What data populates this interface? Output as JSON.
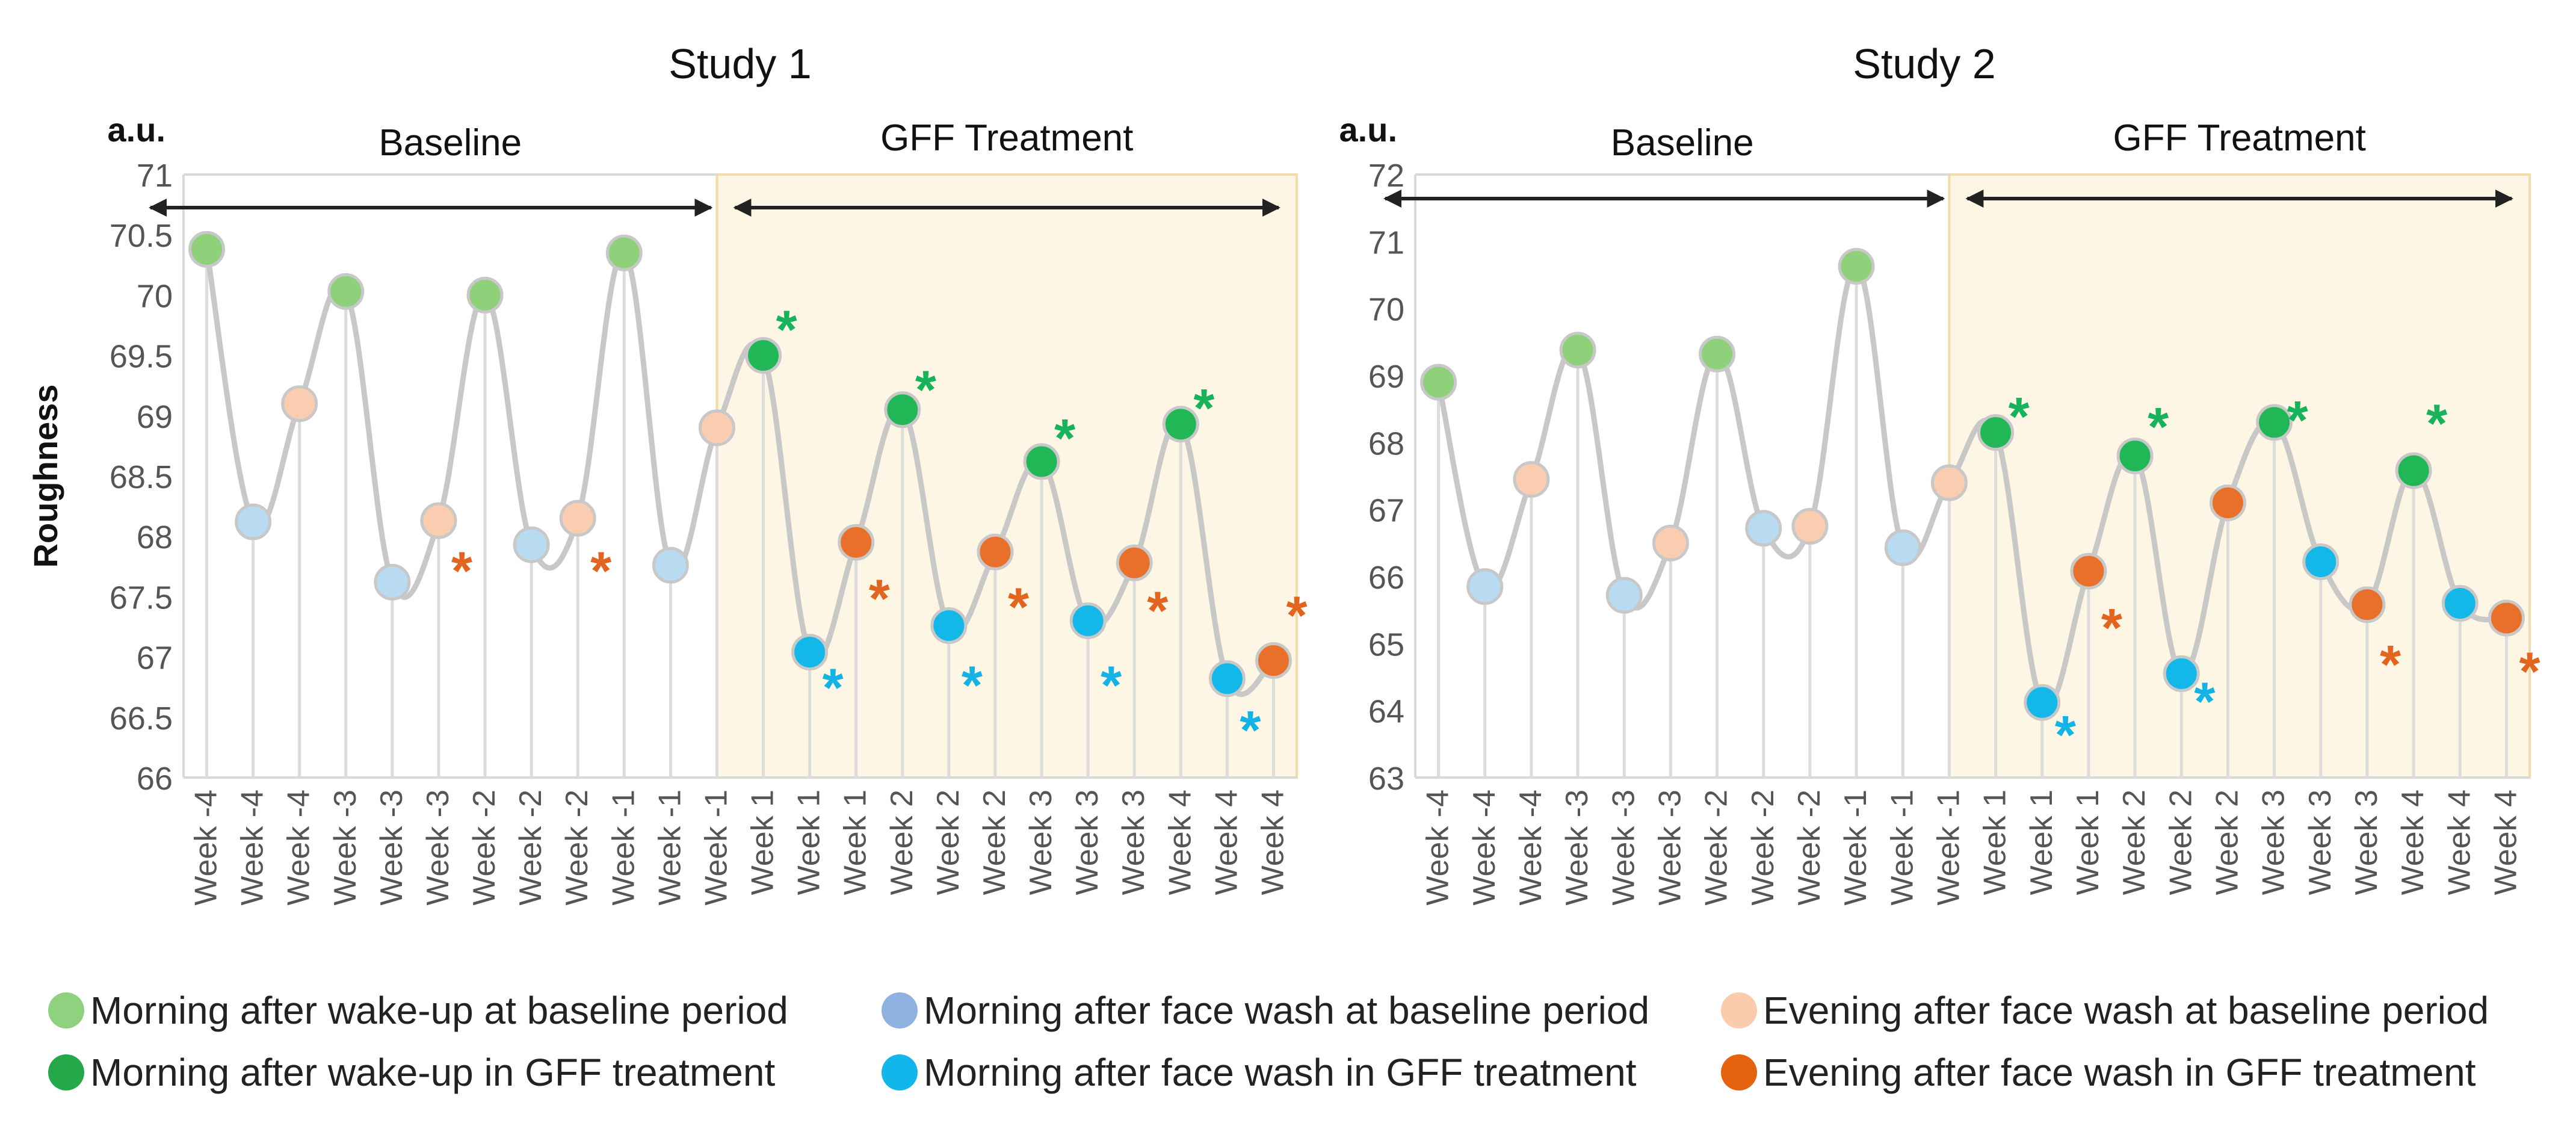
{
  "colors": {
    "baseline_wakeup": "#8fd17b",
    "baseline_wash": "#b9dbf1",
    "baseline_evening": "#fbcdb0",
    "treat_wakeup": "#22b756",
    "treat_wash": "#14b8e8",
    "treat_evening": "#e8702a",
    "line": "#c8c8c8",
    "shade": "#fdf6e4",
    "shade_border": "#f3dcaa",
    "star_green": "#16b35a",
    "star_blue": "#13b3e6",
    "star_orange": "#e2641f"
  },
  "legend": [
    {
      "label": "Morning after wake-up at baseline period",
      "color": "#8ed17e"
    },
    {
      "label": "Morning after face wash at baseline period",
      "color": "#8fb1df"
    },
    {
      "label": "Evening after face wash at baseline period",
      "color": "#fbcbad"
    },
    {
      "label": "Morning after wake-up in GFF treatment",
      "color": "#25a84a"
    },
    {
      "label": "Morning after face wash in GFF treatment",
      "color": "#12b6ea"
    },
    {
      "label": "Evening after face wash in GFF treatment",
      "color": "#e5620f"
    }
  ],
  "chart_data": [
    {
      "type": "line",
      "title": "Study 1",
      "unit_label": "a.u.",
      "ylabel": "Roughness",
      "xlabel": "",
      "ylim": [
        66,
        71
      ],
      "yticks": [
        "66",
        "66.5",
        "67",
        "67.5",
        "68",
        "68.5",
        "69",
        "69.5",
        "70",
        "70.5",
        "71"
      ],
      "period_labels": {
        "baseline": "Baseline",
        "treatment": "GFF Treatment"
      },
      "categories": [
        "Week -4",
        "Week -4",
        "Week -4",
        "Week -3",
        "Week -3",
        "Week -3",
        "Week -2",
        "Week -2",
        "Week -2",
        "Week -1",
        "Week -1",
        "Week -1",
        "Week 1",
        "Week 1",
        "Week 1",
        "Week 2",
        "Week 2",
        "Week 2",
        "Week 3",
        "Week 3",
        "Week 3",
        "Week 4",
        "Week 4",
        "Week 4"
      ],
      "values": [
        70.38,
        68.12,
        69.1,
        70.03,
        67.62,
        68.13,
        70.0,
        67.93,
        68.15,
        70.35,
        67.76,
        68.9,
        69.5,
        67.04,
        67.95,
        69.05,
        67.26,
        67.87,
        68.62,
        67.3,
        67.78,
        68.93,
        66.82,
        66.97
      ],
      "point_types": [
        "baseline_wakeup",
        "baseline_wash",
        "baseline_evening",
        "baseline_wakeup",
        "baseline_wash",
        "baseline_evening",
        "baseline_wakeup",
        "baseline_wash",
        "baseline_evening",
        "baseline_wakeup",
        "baseline_wash",
        "baseline_evening",
        "treat_wakeup",
        "treat_wash",
        "treat_evening",
        "treat_wakeup",
        "treat_wash",
        "treat_evening",
        "treat_wakeup",
        "treat_wash",
        "treat_evening",
        "treat_wakeup",
        "treat_wash",
        "treat_evening"
      ],
      "significance_marks": [
        {
          "index": 5,
          "y": 67.75,
          "color": "star_orange",
          "text": "*"
        },
        {
          "index": 8,
          "y": 67.75,
          "color": "star_orange",
          "text": "*"
        },
        {
          "index": 12,
          "y": 69.75,
          "color": "star_green",
          "text": "*"
        },
        {
          "index": 13,
          "y": 66.78,
          "color": "star_blue",
          "text": "*"
        },
        {
          "index": 14,
          "y": 67.52,
          "color": "star_orange",
          "text": "*"
        },
        {
          "index": 15,
          "y": 69.25,
          "color": "star_green",
          "text": "*"
        },
        {
          "index": 16,
          "y": 66.8,
          "color": "star_blue",
          "text": "*"
        },
        {
          "index": 17,
          "y": 67.45,
          "color": "star_orange",
          "text": "*"
        },
        {
          "index": 18,
          "y": 68.85,
          "color": "star_green",
          "text": "*"
        },
        {
          "index": 19,
          "y": 66.8,
          "color": "star_blue",
          "text": "*"
        },
        {
          "index": 20,
          "y": 67.42,
          "color": "star_orange",
          "text": "*"
        },
        {
          "index": 21,
          "y": 69.1,
          "color": "star_green",
          "text": "*"
        },
        {
          "index": 22,
          "y": 66.43,
          "color": "star_blue",
          "text": "*"
        },
        {
          "index": 23,
          "y": 67.38,
          "color": "star_orange",
          "text": "*"
        }
      ]
    },
    {
      "type": "line",
      "title": "Study 2",
      "unit_label": "a.u.",
      "ylabel": "",
      "xlabel": "",
      "ylim": [
        63,
        72
      ],
      "yticks": [
        "63",
        "64",
        "65",
        "66",
        "67",
        "68",
        "69",
        "70",
        "71",
        "72"
      ],
      "period_labels": {
        "baseline": "Baseline",
        "treatment": "GFF Treatment"
      },
      "categories": [
        "Week -4",
        "Week -4",
        "Week -4",
        "Week -3",
        "Week -3",
        "Week -3",
        "Week -2",
        "Week -2",
        "Week -2",
        "Week -1",
        "Week -1",
        "Week -1",
        "Week 1",
        "Week 1",
        "Week 1",
        "Week 2",
        "Week 2",
        "Week 2",
        "Week 3",
        "Week 3",
        "Week 3",
        "Week 4",
        "Week 4",
        "Week 4"
      ],
      "values": [
        68.9,
        65.85,
        67.45,
        69.38,
        65.72,
        66.5,
        69.32,
        66.72,
        66.75,
        70.63,
        66.43,
        67.4,
        68.15,
        64.12,
        66.08,
        67.8,
        64.55,
        67.1,
        68.3,
        66.22,
        65.58,
        67.58,
        65.6,
        65.38
      ],
      "point_types": [
        "baseline_wakeup",
        "baseline_wash",
        "baseline_evening",
        "baseline_wakeup",
        "baseline_wash",
        "baseline_evening",
        "baseline_wakeup",
        "baseline_wash",
        "baseline_evening",
        "baseline_wakeup",
        "baseline_wash",
        "baseline_evening",
        "treat_wakeup",
        "treat_wash",
        "treat_evening",
        "treat_wakeup",
        "treat_wash",
        "treat_evening",
        "treat_wakeup",
        "treat_wash",
        "treat_evening",
        "treat_wakeup",
        "treat_wash",
        "treat_evening"
      ],
      "significance_marks": [
        {
          "index": 12,
          "y": 68.45,
          "color": "star_green",
          "text": "*"
        },
        {
          "index": 13,
          "y": 63.7,
          "color": "star_blue",
          "text": "*"
        },
        {
          "index": 14,
          "y": 65.3,
          "color": "star_orange",
          "text": "*"
        },
        {
          "index": 15,
          "y": 68.3,
          "color": "star_green",
          "text": "*"
        },
        {
          "index": 16,
          "y": 64.2,
          "color": "star_blue",
          "text": "*"
        },
        {
          "index": 18,
          "y": 68.4,
          "color": "star_green",
          "text": "*"
        },
        {
          "index": 20,
          "y": 64.75,
          "color": "star_orange",
          "text": "*"
        },
        {
          "index": 21,
          "y": 68.35,
          "color": "star_green",
          "text": "*"
        },
        {
          "index": 23,
          "y": 64.65,
          "color": "star_orange",
          "text": "*"
        }
      ]
    }
  ]
}
